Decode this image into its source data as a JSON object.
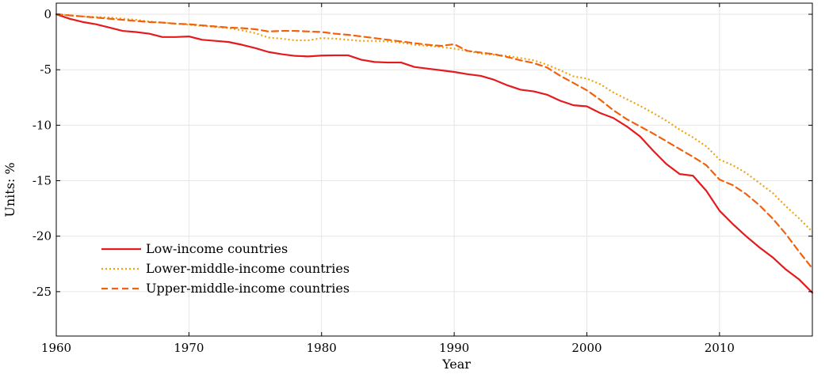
{
  "chart_data": {
    "type": "line",
    "title": "",
    "xlabel": "Year",
    "ylabel": "Units: %",
    "xlim": [
      1960,
      2017
    ],
    "ylim": [
      -29,
      1
    ],
    "xticks": [
      1960,
      1970,
      1980,
      1990,
      2000,
      2010
    ],
    "xtick_labels": [
      "1960",
      "1970",
      "1980",
      "1990",
      "2000",
      "2010"
    ],
    "yticks": [
      0,
      -5,
      -10,
      -15,
      -20,
      -25
    ],
    "ytick_labels": [
      "0",
      "-5",
      "-10",
      "-15",
      "-20",
      "-25"
    ],
    "grid": true,
    "legend_position": "bottom-left",
    "x": [
      1960,
      1961,
      1962,
      1963,
      1964,
      1965,
      1966,
      1967,
      1968,
      1969,
      1970,
      1971,
      1972,
      1973,
      1974,
      1975,
      1976,
      1977,
      1978,
      1979,
      1980,
      1981,
      1982,
      1983,
      1984,
      1985,
      1986,
      1987,
      1988,
      1989,
      1990,
      1991,
      1992,
      1993,
      1994,
      1995,
      1996,
      1997,
      1998,
      1999,
      2000,
      2001,
      2002,
      2003,
      2004,
      2005,
      2006,
      2007,
      2008,
      2009,
      2010,
      2011,
      2012,
      2013,
      2014,
      2015,
      2016,
      2017
    ],
    "series": [
      {
        "name": "Low-income countries",
        "color": "#e41a1c",
        "style": "solid",
        "values": [
          0,
          -0.4,
          -0.7,
          -0.9,
          -1.2,
          -1.5,
          -1.6,
          -1.75,
          -2.05,
          -2.05,
          -2.0,
          -2.3,
          -2.4,
          -2.5,
          -2.75,
          -3.05,
          -3.4,
          -3.6,
          -3.75,
          -3.8,
          -3.72,
          -3.7,
          -3.7,
          -4.1,
          -4.3,
          -4.35,
          -4.35,
          -4.75,
          -4.9,
          -5.05,
          -5.2,
          -5.4,
          -5.55,
          -5.9,
          -6.4,
          -6.8,
          -6.95,
          -7.25,
          -7.8,
          -8.2,
          -8.3,
          -8.9,
          -9.35,
          -10.1,
          -11.0,
          -12.3,
          -13.5,
          -14.4,
          -14.55,
          -15.9,
          -17.7,
          -18.9,
          -20.0,
          -21.0,
          -21.9,
          -23.0,
          -23.9,
          -25.1
        ]
      },
      {
        "name": "Lower-middle-income countries",
        "color": "#f0a20c",
        "style": "dotted",
        "values": [
          0,
          -0.1,
          -0.2,
          -0.25,
          -0.3,
          -0.4,
          -0.5,
          -0.65,
          -0.75,
          -0.85,
          -0.95,
          -1.05,
          -1.15,
          -1.25,
          -1.45,
          -1.7,
          -2.1,
          -2.2,
          -2.35,
          -2.35,
          -2.15,
          -2.2,
          -2.3,
          -2.4,
          -2.4,
          -2.45,
          -2.55,
          -2.75,
          -2.85,
          -2.95,
          -3.1,
          -3.3,
          -3.55,
          -3.65,
          -3.75,
          -3.95,
          -4.15,
          -4.55,
          -5.05,
          -5.6,
          -5.8,
          -6.3,
          -7.05,
          -7.65,
          -8.25,
          -8.9,
          -9.6,
          -10.4,
          -11.1,
          -11.9,
          -13.1,
          -13.6,
          -14.3,
          -15.2,
          -16.1,
          -17.3,
          -18.4,
          -19.6
        ]
      },
      {
        "name": "Upper-middle-income countries",
        "color": "#f2610d",
        "style": "dashed",
        "values": [
          0,
          -0.1,
          -0.2,
          -0.3,
          -0.4,
          -0.5,
          -0.6,
          -0.7,
          -0.75,
          -0.85,
          -0.9,
          -1.0,
          -1.1,
          -1.2,
          -1.25,
          -1.35,
          -1.55,
          -1.5,
          -1.5,
          -1.55,
          -1.6,
          -1.75,
          -1.85,
          -2.0,
          -2.15,
          -2.3,
          -2.45,
          -2.6,
          -2.75,
          -2.85,
          -2.7,
          -3.3,
          -3.45,
          -3.6,
          -3.85,
          -4.15,
          -4.4,
          -4.8,
          -5.55,
          -6.2,
          -6.85,
          -7.7,
          -8.65,
          -9.45,
          -10.1,
          -10.75,
          -11.45,
          -12.15,
          -12.85,
          -13.6,
          -14.9,
          -15.4,
          -16.2,
          -17.2,
          -18.4,
          -19.8,
          -21.4,
          -22.9
        ]
      }
    ]
  }
}
